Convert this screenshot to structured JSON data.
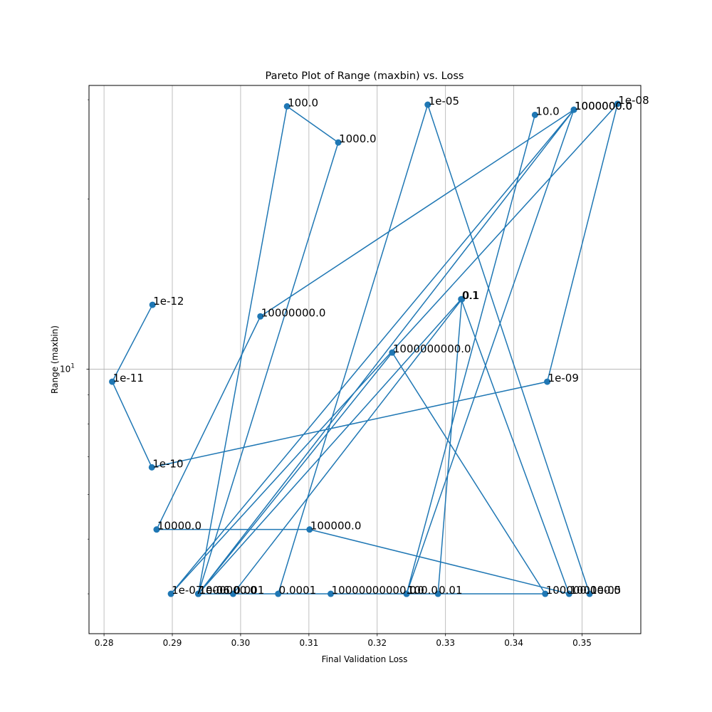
{
  "chart_data": {
    "type": "line",
    "title": "Pareto Plot of Range (maxbin) vs. Loss",
    "xlabel": "Final Validation Loss",
    "ylabel": "Range (maxbin)",
    "xlim": [
      0.2778,
      0.3586
    ],
    "ylim": [
      3.4,
      31.8
    ],
    "yscale": "log",
    "grid": true,
    "color": "#1f77b4",
    "x_ticks": [
      {
        "value": 0.28,
        "label": "0.28"
      },
      {
        "value": 0.29,
        "label": "0.29"
      },
      {
        "value": 0.3,
        "label": "0.30"
      },
      {
        "value": 0.31,
        "label": "0.31"
      },
      {
        "value": 0.32,
        "label": "0.32"
      },
      {
        "value": 0.33,
        "label": "0.33"
      },
      {
        "value": 0.34,
        "label": "0.34"
      },
      {
        "value": 0.35,
        "label": "0.35"
      }
    ],
    "y_major_ticks": [
      {
        "value": 10,
        "base": "10",
        "exp": "1"
      }
    ],
    "y_minor_ticks": [
      4,
      5,
      6,
      7,
      8,
      9,
      20,
      30
    ],
    "points": [
      {
        "x": 0.2871,
        "y": 13.0,
        "label": "1e-12"
      },
      {
        "x": 0.2812,
        "y": 9.5,
        "label": "1e-11"
      },
      {
        "x": 0.287,
        "y": 6.7,
        "label": "1e-10"
      },
      {
        "x": 0.3449,
        "y": 9.5,
        "label": "1e-09"
      },
      {
        "x": 0.3552,
        "y": 29.5,
        "label": "1e-08"
      },
      {
        "x": 0.2898,
        "y": 4.0,
        "label": "1e-07"
      },
      {
        "x": 0.3488,
        "y": 28.8,
        "label": "1000000.0"
      },
      {
        "x": 0.3029,
        "y": 12.4,
        "label": "10000000.0"
      },
      {
        "x": 0.2877,
        "y": 5.2,
        "label": "10000.0"
      },
      {
        "x": 0.3101,
        "y": 5.2,
        "label": "100000.0"
      },
      {
        "x": 0.3481,
        "y": 4.0,
        "label": "100000.0"
      },
      {
        "x": 0.3323,
        "y": 13.3,
        "label": "0.1"
      },
      {
        "x": 0.2938,
        "y": 4.0,
        "label": "1000000.0"
      },
      {
        "x": 0.3068,
        "y": 29.2,
        "label": "100.0"
      },
      {
        "x": 0.3143,
        "y": 25.2,
        "label": "1000.0"
      },
      {
        "x": 0.2938,
        "y": 4.0,
        "label": "1e-06"
      },
      {
        "x": 0.3289,
        "y": 4.0,
        "label": "0.01"
      },
      {
        "x": 0.3324,
        "y": 13.3,
        "label": "0.1"
      },
      {
        "x": 0.2989,
        "y": 4.0,
        "label": "0.001"
      },
      {
        "x": 0.3243,
        "y": 4.0,
        "label": "1.0"
      },
      {
        "x": 0.3431,
        "y": 28.2,
        "label": "10.0"
      },
      {
        "x": 0.3243,
        "y": 4.0,
        "label": "100.0"
      },
      {
        "x": 0.3488,
        "y": 28.8,
        "label": "1000000.0"
      },
      {
        "x": 0.2938,
        "y": 4.0,
        "label": "1e-06"
      },
      {
        "x": 0.3222,
        "y": 10.7,
        "label": "1000000000.0"
      },
      {
        "x": 0.3446,
        "y": 4.0,
        "label": "100000.0"
      },
      {
        "x": 0.3132,
        "y": 4.0,
        "label": "10000000000.0"
      },
      {
        "x": 0.3055,
        "y": 4.0,
        "label": "0.0001"
      },
      {
        "x": 0.3274,
        "y": 29.4,
        "label": "1e-05"
      },
      {
        "x": 0.3511,
        "y": 4.0,
        "label": "1e-05"
      }
    ]
  }
}
